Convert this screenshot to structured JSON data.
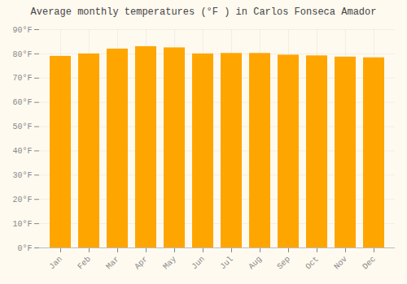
{
  "chart_data": {
    "type": "bar",
    "title": "Average monthly temperatures (°F ) in Carlos Fonseca Amador",
    "categories": [
      "Jan",
      "Feb",
      "Mar",
      "Apr",
      "May",
      "Jun",
      "Jul",
      "Aug",
      "Sep",
      "Oct",
      "Nov",
      "Dec"
    ],
    "values": [
      79,
      80,
      82,
      83,
      82.5,
      80,
      80.2,
      80.2,
      79.5,
      79.2,
      78.7,
      78.4
    ],
    "color": "#FFA500",
    "ylim": [
      0,
      90
    ],
    "yticks": [
      {
        "value": 0,
        "label": "0°F"
      },
      {
        "value": 10,
        "label": "10°F"
      },
      {
        "value": 20,
        "label": "20°F"
      },
      {
        "value": 30,
        "label": "30°F"
      },
      {
        "value": 40,
        "label": "40°F"
      },
      {
        "value": 50,
        "label": "50°F"
      },
      {
        "value": 60,
        "label": "60°F"
      },
      {
        "value": 70,
        "label": "70°F"
      },
      {
        "value": 80,
        "label": "80°F"
      },
      {
        "value": 90,
        "label": "90°F"
      }
    ],
    "grid": true
  }
}
